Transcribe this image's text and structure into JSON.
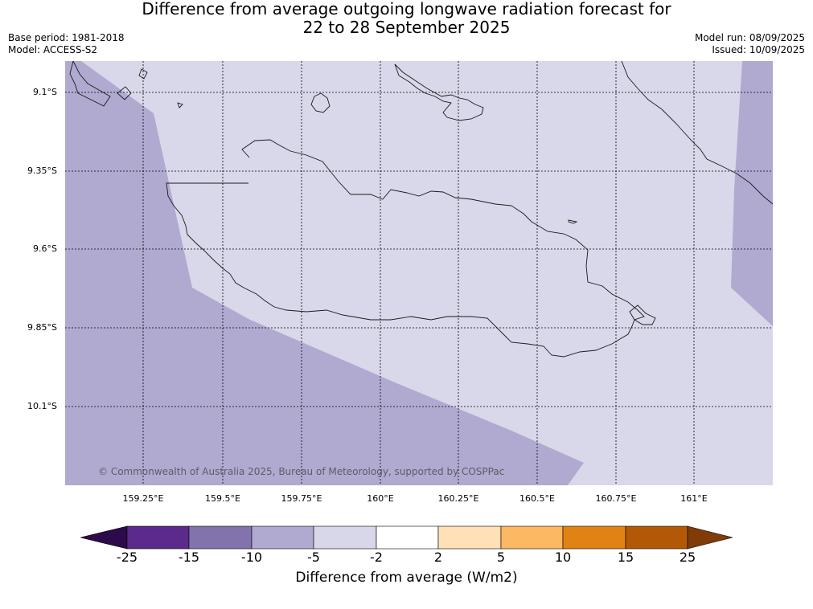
{
  "title_line1": "Difference from average outgoing longwave radiation forecast for",
  "title_line2": "22 to 28 September 2025",
  "base_period": "Base period: 1981-2018",
  "model": "Model: ACCESS-S2",
  "model_run": "Model run: 08/09/2025",
  "issued": "Issued: 10/09/2025",
  "lat_labels": [
    "9.1°S",
    "9.35°S",
    "9.6°S",
    "9.85°S",
    "10.1°S"
  ],
  "lon_labels": [
    "159.25°E",
    "159.5°E",
    "159.75°E",
    "160°E",
    "160.25°E",
    "160.5°E",
    "160.75°E",
    "161°E"
  ],
  "copyright": "© Commonwealth of Australia 2025, Bureau of Meteorology, supported by COSPPac",
  "colorbar": {
    "title": "Difference from average (W/m2)",
    "ticks": [
      "-25",
      "-15",
      "-10",
      "-5",
      "-2",
      "2",
      "5",
      "10",
      "15",
      "25"
    ],
    "colors": [
      "#5b2a8a",
      "#8273ad",
      "#b0aad1",
      "#d7d7e9",
      "#ffffff",
      "#ffe0b7",
      "#fdb863",
      "#e08214",
      "#b35806"
    ],
    "under_color": "#2d0a4a",
    "over_color": "#7f3b08"
  },
  "map_colors": {
    "light_band": "#d8d8ea",
    "medium_band": "#b0aad1",
    "coast": "#1a1a1a",
    "grid": "#000000"
  }
}
